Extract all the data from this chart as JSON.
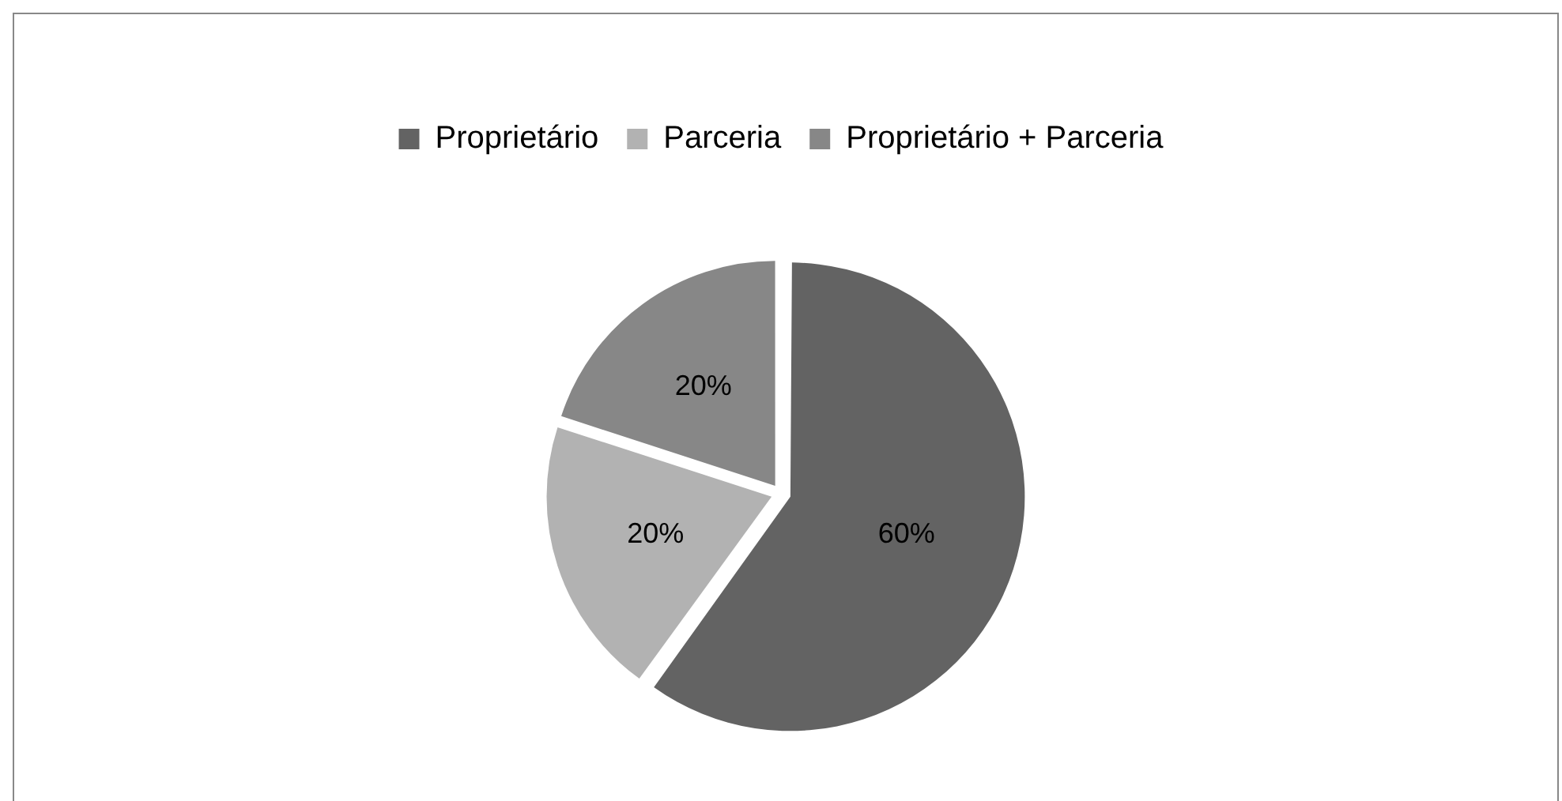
{
  "chart_data": {
    "type": "pie",
    "categories": [
      "Proprietário",
      "Parceria",
      "Proprietário + Parceria"
    ],
    "values": [
      60,
      20,
      20
    ],
    "value_labels": [
      "60%",
      "20%",
      "20%"
    ],
    "colors": [
      "#636363",
      "#b2b2b2",
      "#878787"
    ],
    "legend": "top"
  }
}
